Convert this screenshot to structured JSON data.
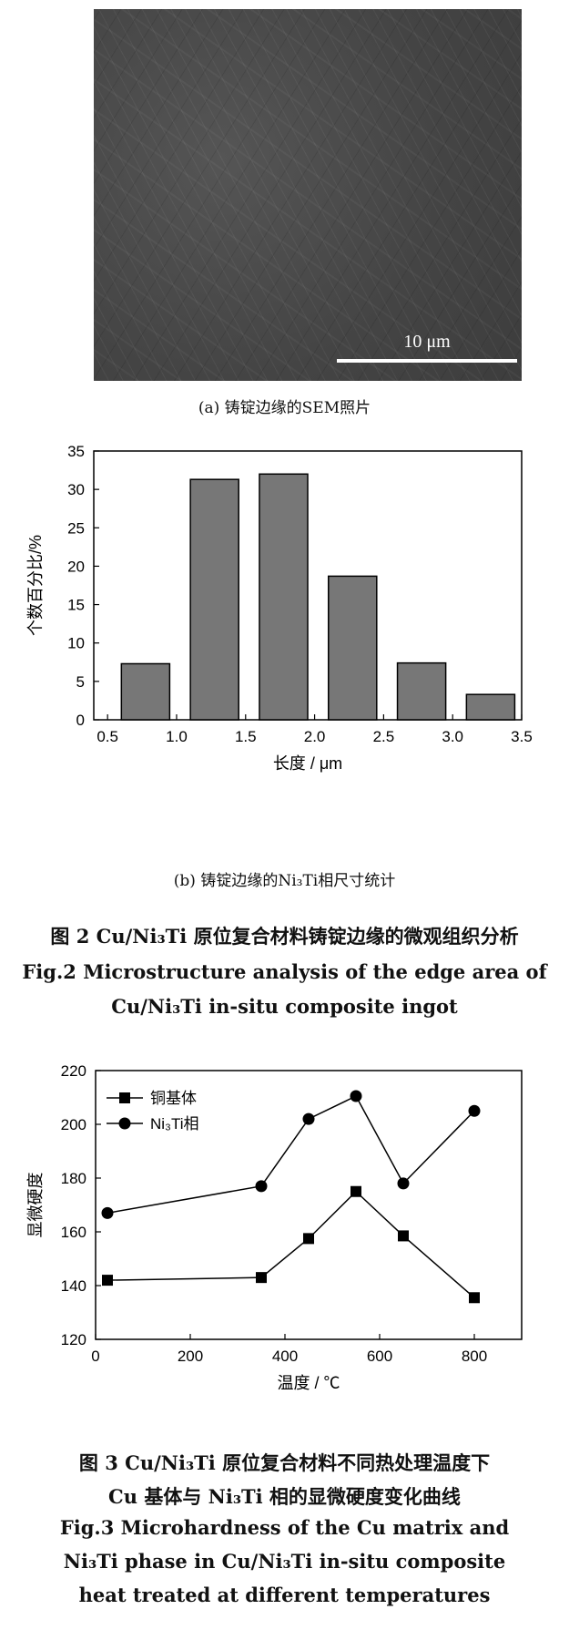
{
  "figure_a": {
    "scale_bar_label": "10 μm",
    "caption": "(a)  铸锭边缘的SEM照片"
  },
  "figure_b": {
    "caption": "(b)  铸锭边缘的Ni₃Ti相尺寸统计"
  },
  "fig2_caption": {
    "zh": "图 2   Cu/Ni₃Ti 原位复合材料铸锭边缘的微观组织分析",
    "en_line1": "Fig.2   Microstructure analysis of the edge area of",
    "en_line2": "Cu/Ni₃Ti in-situ composite ingot"
  },
  "fig3_caption": {
    "zh_line1": "图 3   Cu/Ni₃Ti 原位复合材料不同热处理温度下",
    "zh_line2": "Cu 基体与 Ni₃Ti 相的显微硬度变化曲线",
    "en_line1": "Fig.3   Microhardness of the Cu matrix and",
    "en_line2": "Ni₃Ti phase in Cu/Ni₃Ti in-situ composite",
    "en_line3": "heat treated at different temperatures"
  },
  "chart_data": [
    {
      "type": "bar",
      "xlabel": "长度 / μm",
      "ylabel": "个数百分比/%",
      "bin_edges": [
        [
          0.6,
          0.95
        ],
        [
          1.1,
          1.45
        ],
        [
          1.6,
          1.95
        ],
        [
          2.1,
          2.45
        ],
        [
          2.6,
          2.95
        ],
        [
          3.1,
          3.45
        ]
      ],
      "values": [
        7.3,
        31.3,
        32.0,
        18.7,
        7.4,
        3.3
      ],
      "xlim": [
        0.4,
        3.5
      ],
      "ylim": [
        0,
        35
      ],
      "xticks": [
        0.5,
        1.0,
        1.5,
        2.0,
        2.5,
        3.0,
        3.5
      ],
      "xtick_labels": [
        "0.5",
        "1.0",
        "1.5",
        "2.0",
        "2.5",
        "3.0",
        "3.5"
      ],
      "yticks": [
        0,
        5,
        10,
        15,
        20,
        25,
        30,
        35
      ],
      "ytick_labels": [
        "0",
        "5",
        "10",
        "15",
        "20",
        "25",
        "30",
        "35"
      ],
      "bar_color": "#777777",
      "grid": false
    },
    {
      "type": "line",
      "xlabel": "温度 / ℃",
      "ylabel": "显微硬度",
      "xlim": [
        0,
        900
      ],
      "ylim": [
        120,
        220
      ],
      "xticks": [
        0,
        200,
        400,
        600,
        800
      ],
      "xtick_labels": [
        "0",
        "200",
        "400",
        "600",
        "800"
      ],
      "yticks": [
        120,
        140,
        160,
        180,
        200,
        220
      ],
      "ytick_labels": [
        "120",
        "140",
        "160",
        "180",
        "200",
        "220"
      ],
      "legend_position": "top-left",
      "grid": false,
      "series": [
        {
          "name": "铜基体",
          "marker": "square",
          "x": [
            25,
            350,
            450,
            550,
            650,
            800
          ],
          "y": [
            142,
            143,
            157.5,
            175,
            158.5,
            135.5
          ]
        },
        {
          "name": "Ni₃Ti相",
          "marker": "circle",
          "x": [
            25,
            350,
            450,
            550,
            650,
            800
          ],
          "y": [
            167,
            177,
            202,
            210.5,
            178,
            205
          ]
        }
      ]
    }
  ]
}
